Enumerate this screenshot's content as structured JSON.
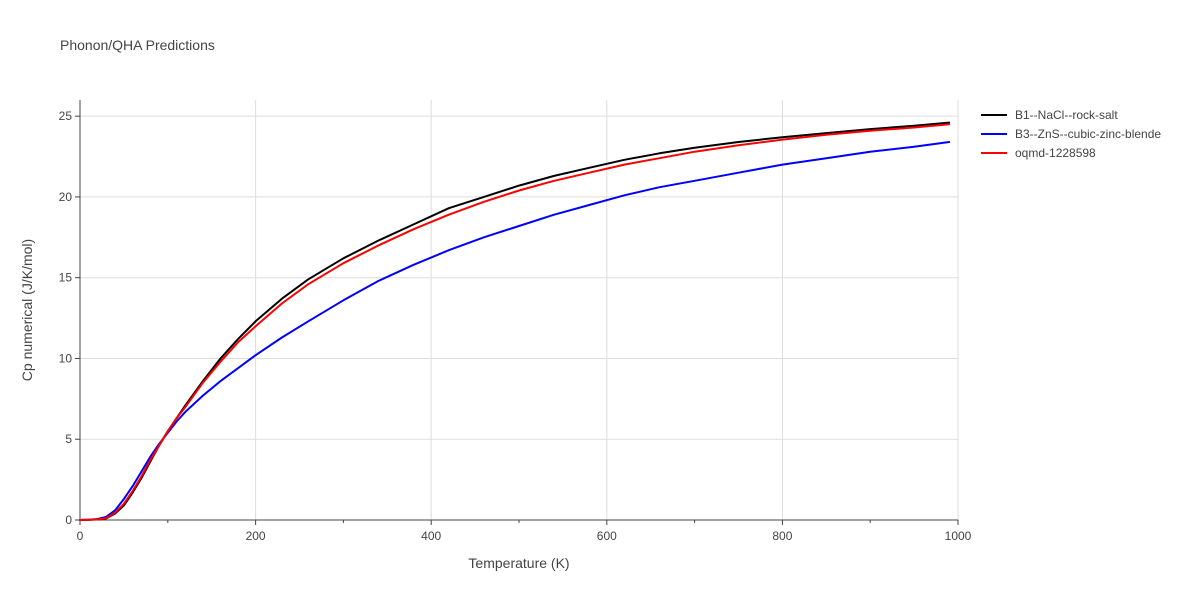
{
  "chart_data": {
    "type": "line",
    "title": "Phonon/QHA Predictions",
    "xlabel": "Temperature (K)",
    "ylabel": "Cp numerical (J/K/mol)",
    "xlim": [
      0,
      1000
    ],
    "ylim": [
      0,
      26
    ],
    "xticks": [
      0,
      200,
      400,
      600,
      800,
      1000
    ],
    "yticks": [
      0,
      5,
      10,
      15,
      20,
      25
    ],
    "grid": true,
    "legend_position": "top-right",
    "series": [
      {
        "name": "B1--NaCl--rock-salt",
        "color": "#000000",
        "x": [
          0,
          10,
          20,
          30,
          40,
          50,
          60,
          70,
          80,
          90,
          100,
          110,
          120,
          140,
          160,
          180,
          200,
          230,
          260,
          300,
          340,
          380,
          420,
          460,
          500,
          540,
          580,
          620,
          660,
          700,
          750,
          800,
          850,
          900,
          950,
          990
        ],
        "y": [
          0,
          0.01,
          0.03,
          0.1,
          0.4,
          0.9,
          1.7,
          2.6,
          3.6,
          4.6,
          5.5,
          6.3,
          7.1,
          8.6,
          10.0,
          11.2,
          12.3,
          13.7,
          14.9,
          16.2,
          17.3,
          18.3,
          19.3,
          20.0,
          20.7,
          21.3,
          21.8,
          22.3,
          22.7,
          23.05,
          23.4,
          23.7,
          23.95,
          24.2,
          24.4,
          24.6
        ]
      },
      {
        "name": "B3--ZnS--cubic-zinc-blende",
        "color": "#0000ff",
        "x": [
          0,
          10,
          20,
          30,
          40,
          50,
          60,
          70,
          80,
          90,
          100,
          110,
          120,
          140,
          160,
          180,
          200,
          230,
          260,
          300,
          340,
          380,
          420,
          460,
          500,
          540,
          580,
          620,
          660,
          700,
          750,
          800,
          850,
          900,
          950,
          990
        ],
        "y": [
          0,
          0.02,
          0.06,
          0.2,
          0.6,
          1.3,
          2.1,
          3.0,
          3.9,
          4.7,
          5.4,
          6.1,
          6.7,
          7.7,
          8.6,
          9.4,
          10.2,
          11.3,
          12.3,
          13.6,
          14.8,
          15.8,
          16.7,
          17.5,
          18.2,
          18.9,
          19.5,
          20.1,
          20.6,
          21.0,
          21.5,
          22.0,
          22.4,
          22.8,
          23.1,
          23.4
        ]
      },
      {
        "name": "oqmd-1228598",
        "color": "#ff0000",
        "x": [
          0,
          10,
          20,
          30,
          40,
          50,
          60,
          70,
          80,
          90,
          100,
          110,
          120,
          140,
          160,
          180,
          200,
          230,
          260,
          300,
          340,
          380,
          420,
          460,
          500,
          540,
          580,
          620,
          660,
          700,
          750,
          800,
          850,
          900,
          950,
          990
        ],
        "y": [
          0,
          0.01,
          0.04,
          0.12,
          0.45,
          1.0,
          1.8,
          2.7,
          3.7,
          4.6,
          5.5,
          6.3,
          7.0,
          8.5,
          9.8,
          11.0,
          12.0,
          13.4,
          14.6,
          15.9,
          17.0,
          18.0,
          18.9,
          19.7,
          20.4,
          21.0,
          21.5,
          22.0,
          22.4,
          22.8,
          23.2,
          23.55,
          23.85,
          24.1,
          24.3,
          24.5
        ]
      }
    ]
  }
}
